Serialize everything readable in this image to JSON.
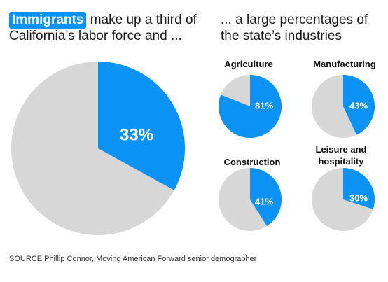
{
  "headline_left": {
    "highlight": "Immigrants",
    "line1_rest": " make up a third of",
    "line2": "California’s labor force and ..."
  },
  "headline_right": {
    "line1": "... a large percentages of",
    "line2": "the state’s industries"
  },
  "source": "SOURCE Phillip Connor, Moving American Forward senior demographer",
  "colors": {
    "accent": "#0a93f5",
    "remainder": "#d7d7d7",
    "text": "#1a1a1a"
  },
  "chart_data": [
    {
      "type": "pie",
      "title": "",
      "category": "",
      "value": 33,
      "label": "33%"
    },
    {
      "type": "pie",
      "title": "Agriculture",
      "category": "Agriculture",
      "value": 81,
      "label": "81%"
    },
    {
      "type": "pie",
      "title": "Manufacturing",
      "category": "Manufacturing",
      "value": 43,
      "label": "43%"
    },
    {
      "type": "pie",
      "title": "Construction",
      "category": "Construction",
      "value": 41,
      "label": "41%"
    },
    {
      "type": "pie",
      "title": "Leisure and hospitality",
      "category": "Leisure and hospitality",
      "value": 30,
      "label": "30%"
    }
  ]
}
